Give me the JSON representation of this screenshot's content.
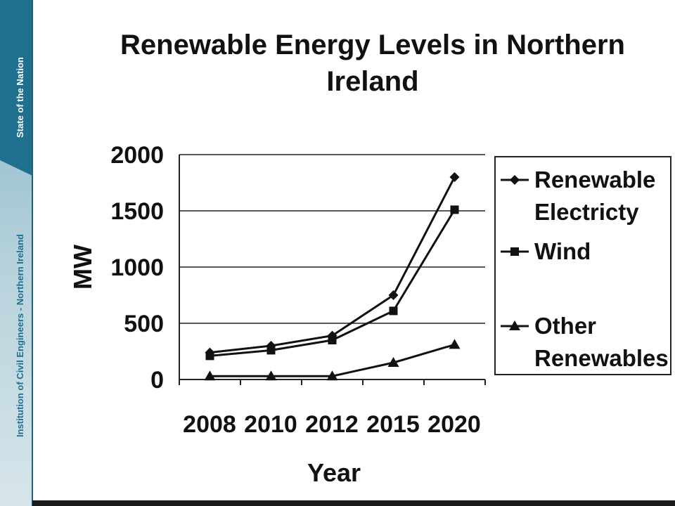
{
  "sidebar": {
    "top_text": "State of the Nation",
    "bottom_text": "Institution of Civil Engineers - Northern Ireland"
  },
  "colors": {
    "sidebar_top": "#1f6f8f",
    "sidebar_light": "#b9d3dc",
    "line": "#111111"
  },
  "chart_data": {
    "type": "line",
    "title": "Renewable Energy Levels in Northern Ireland",
    "xlabel": "Year",
    "ylabel": "MW",
    "categories": [
      "2008",
      "2010",
      "2012",
      "2015",
      "2020"
    ],
    "ylim": [
      0,
      2000
    ],
    "yticks": [
      "0",
      "500",
      "1000",
      "1500",
      "2000"
    ],
    "grid": true,
    "legend_position": "right",
    "series": [
      {
        "name": "Renewable Electricty",
        "marker": "diamond",
        "values": [
          240,
          300,
          390,
          750,
          1800
        ]
      },
      {
        "name": "Wind",
        "marker": "square",
        "values": [
          210,
          260,
          350,
          610,
          1510
        ]
      },
      {
        "name": "Other Renewables",
        "marker": "triangle",
        "values": [
          30,
          30,
          30,
          150,
          310
        ]
      }
    ],
    "legend_labels": [
      [
        "Renewable",
        "Electricty"
      ],
      [
        "Wind"
      ],
      [
        "Other",
        "Renewables"
      ]
    ]
  }
}
